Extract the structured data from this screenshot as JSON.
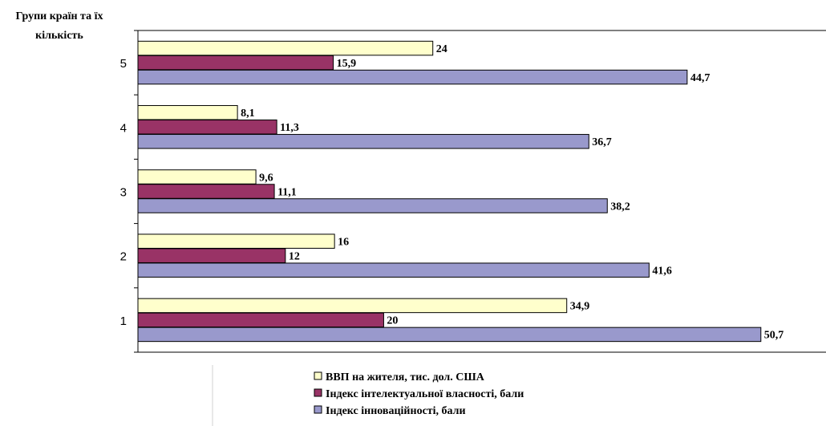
{
  "chart_data": {
    "type": "bar",
    "orientation": "horizontal",
    "ylabel": "Групи країн та їх кількість",
    "ylabel_lines": [
      "Групи країн та їх",
      "кількість"
    ],
    "categories": [
      "5",
      "4",
      "3",
      "2",
      "1"
    ],
    "xlim": [
      0,
      56
    ],
    "grid": false,
    "legend_position": "bottom",
    "series": [
      {
        "name": "ВВП на жителя, тис. дол. США",
        "color": "#FFFFCC",
        "values": [
          24,
          8.1,
          9.6,
          16,
          34.9
        ],
        "labels": [
          "24",
          "8,1",
          "9,6",
          "16",
          "34,9"
        ]
      },
      {
        "name": "Індекс інтелектуальної власності, бали",
        "color": "#993366",
        "values": [
          15.9,
          11.3,
          11.1,
          12,
          20
        ],
        "labels": [
          "15,9",
          "11,3",
          "11,1",
          "12",
          "20"
        ]
      },
      {
        "name": "Індекс інноваційності, бали",
        "color": "#9999CC",
        "values": [
          44.7,
          36.7,
          38.2,
          41.6,
          50.7
        ],
        "labels": [
          "44,7",
          "36,7",
          "38,2",
          "41,6",
          "50,7"
        ]
      }
    ]
  }
}
